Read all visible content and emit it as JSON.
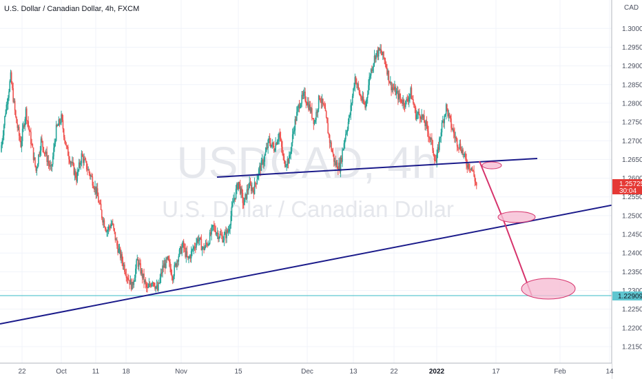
{
  "header": {
    "title": "U.S. Dollar / Canadian Dollar, 4h, FXCM",
    "currency": "CAD"
  },
  "watermark": {
    "symbol": "USDCAD, 4h",
    "name": "U.S. Dollar / Canadian Dollar"
  },
  "price_badge": {
    "price": "1.25725",
    "countdown": "30:04",
    "color": "#e53935"
  },
  "level_badge": {
    "label": "1.22909",
    "color": "#5fc6d0"
  },
  "chart_data": {
    "type": "line",
    "title": "U.S. Dollar / Canadian Dollar, 4h, FXCM",
    "xlabel": "",
    "ylabel": "CAD",
    "ylim": [
      1.2115,
      1.3065
    ],
    "yticks": [
      "1.30000",
      "1.29500",
      "1.29000",
      "1.28500",
      "1.28000",
      "1.27500",
      "1.27000",
      "1.26500",
      "1.26000",
      "1.25500",
      "1.25000",
      "1.24500",
      "1.24000",
      "1.23500",
      "1.23000",
      "1.22500",
      "1.22000",
      "1.21500"
    ],
    "xticks": [
      "22",
      "Oct",
      "11",
      "18",
      "Nov",
      "15",
      "Dec",
      "13",
      "22",
      "2022",
      "17",
      "Feb",
      "14"
    ],
    "colors": {
      "up": "#26a69a",
      "down": "#ef5350",
      "grid": "#f0f3fa",
      "trendline": "#1a1a8a",
      "projection": "#d6336c",
      "ellipse": "#f4a7c3"
    },
    "series": [
      {
        "values": [
          1.267,
          1.278,
          1.287,
          1.276,
          1.269,
          1.278,
          1.27,
          1.262,
          1.27,
          1.266,
          1.262,
          1.273,
          1.276,
          1.268,
          1.264,
          1.26,
          1.266,
          1.263,
          1.26,
          1.256,
          1.25,
          1.246,
          1.248,
          1.242,
          1.238,
          1.234,
          1.231,
          1.238,
          1.234,
          1.23,
          1.233,
          1.23,
          1.236,
          1.238,
          1.234,
          1.239,
          1.242,
          1.238,
          1.241,
          1.244,
          1.241,
          1.243,
          1.247,
          1.245,
          1.244,
          1.246,
          1.254,
          1.259,
          1.253,
          1.258,
          1.257,
          1.262,
          1.265,
          1.27,
          1.268,
          1.272,
          1.264,
          1.265,
          1.274,
          1.28,
          1.282,
          1.279,
          1.275,
          1.282,
          1.278,
          1.27,
          1.264,
          1.263,
          1.271,
          1.277,
          1.287,
          1.282,
          1.279,
          1.288,
          1.293,
          1.294,
          1.291,
          1.285,
          1.283,
          1.281,
          1.28,
          1.283,
          1.277,
          1.277,
          1.274,
          1.27,
          1.264,
          1.273,
          1.279,
          1.274,
          1.27,
          1.268,
          1.264,
          1.263,
          1.258
        ]
      }
    ]
  }
}
